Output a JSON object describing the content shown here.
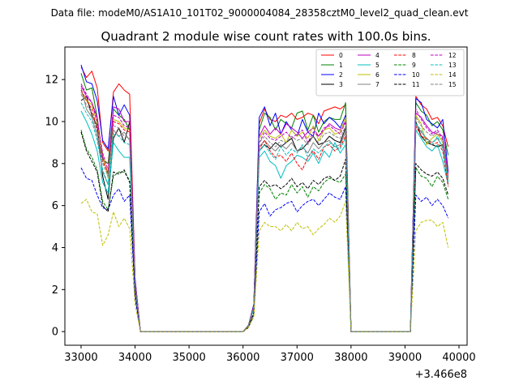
{
  "header": {
    "suptitle": "Data file: modeM0/AS1A10_101T02_9000004084_28358cztM0_level2_quad_clean.evt",
    "title": "Quadrant 2 module wise count rates with 100.0s bins."
  },
  "chart_data": {
    "type": "line",
    "title": "Quadrant 2 module wise count rates with 100.0s bins.",
    "xlabel": "",
    "ylabel": "",
    "x_offset_label": "+3.466e8",
    "xlim": [
      32700,
      40150
    ],
    "ylim": [
      -0.65,
      13.55
    ],
    "xticks": [
      33000,
      34000,
      35000,
      36000,
      37000,
      38000,
      39000,
      40000
    ],
    "yticks": [
      0,
      2,
      4,
      6,
      8,
      10,
      12
    ],
    "grid": false,
    "legend_placement": "top-right",
    "x": [
      33000,
      33100,
      33200,
      33300,
      33400,
      33500,
      33600,
      33700,
      33800,
      33900,
      34000,
      34100,
      34200,
      34300,
      34400,
      34500,
      34600,
      34700,
      34800,
      34900,
      35000,
      35100,
      35200,
      35300,
      35400,
      35500,
      35600,
      35700,
      35800,
      35900,
      36000,
      36100,
      36200,
      36300,
      36400,
      36500,
      36600,
      36700,
      36800,
      36900,
      37000,
      37100,
      37200,
      37300,
      37400,
      37500,
      37600,
      37700,
      37800,
      37900,
      38000,
      38100,
      38200,
      38300,
      38400,
      38500,
      38600,
      38700,
      38800,
      38900,
      39000,
      39100,
      39200,
      39300,
      39400,
      39500,
      39600,
      39700,
      39800
    ],
    "series": [
      {
        "name": "0",
        "color": "#ff0000",
        "dash": "solid",
        "values": [
          12.6,
          12.1,
          12.4,
          11.6,
          9.0,
          8.6,
          11.4,
          11.8,
          11.5,
          11.3,
          2.5,
          0,
          0,
          0,
          0,
          0,
          0,
          0,
          0,
          0,
          0,
          0,
          0,
          0,
          0,
          0,
          0,
          0,
          0,
          0,
          0,
          0.3,
          1.3,
          9.9,
          10.6,
          10.1,
          10.0,
          10.3,
          10.2,
          10.4,
          10.1,
          10.2,
          10.4,
          10.3,
          9.9,
          10.5,
          10.6,
          10.7,
          10.6,
          10.8,
          0,
          0,
          0,
          0,
          0,
          0,
          0,
          0,
          0,
          0,
          0,
          0,
          11.2,
          10.8,
          10.6,
          10.1,
          10.2,
          9.8,
          8.8
        ]
      },
      {
        "name": "1",
        "color": "#008000",
        "dash": "solid",
        "values": [
          12.3,
          11.5,
          11.6,
          10.2,
          8.2,
          8.0,
          10.6,
          10.3,
          10.1,
          9.6,
          2.4,
          0,
          0,
          0,
          0,
          0,
          0,
          0,
          0,
          0,
          0,
          0,
          0,
          0,
          0,
          0,
          0,
          0,
          0,
          0,
          0,
          0.3,
          1.2,
          9.6,
          10.4,
          10.2,
          9.6,
          10.1,
          9.9,
          9.7,
          10.4,
          10.5,
          9.6,
          10.3,
          9.5,
          10.0,
          10.2,
          10.1,
          10.1,
          10.9,
          0,
          0,
          0,
          0,
          0,
          0,
          0,
          0,
          0,
          0,
          0,
          0,
          10.9,
          10.5,
          10.3,
          9.8,
          10.0,
          9.6,
          8.4
        ]
      },
      {
        "name": "2",
        "color": "#0000ff",
        "dash": "solid",
        "values": [
          12.7,
          11.9,
          11.8,
          11.0,
          9.1,
          8.7,
          11.2,
          10.3,
          10.8,
          10.3,
          2.5,
          0,
          0,
          0,
          0,
          0,
          0,
          0,
          0,
          0,
          0,
          0,
          0,
          0,
          0,
          0,
          0,
          0,
          0,
          0,
          0,
          0.3,
          1.3,
          10.2,
          10.7,
          9.8,
          10.4,
          9.4,
          10.0,
          9.6,
          9.3,
          10.1,
          9.5,
          9.3,
          10.4,
          9.9,
          10.2,
          10.0,
          9.7,
          10.3,
          0,
          0,
          0,
          0,
          0,
          0,
          0,
          0,
          0,
          0,
          0,
          0,
          11.1,
          10.9,
          10.1,
          9.9,
          9.7,
          10.1,
          7.6
        ]
      },
      {
        "name": "3",
        "color": "#000000",
        "dash": "solid",
        "values": [
          11.0,
          11.2,
          10.3,
          9.8,
          7.4,
          6.3,
          9.2,
          9.7,
          9.0,
          10.0,
          2.2,
          0,
          0,
          0,
          0,
          0,
          0,
          0,
          0,
          0,
          0,
          0,
          0,
          0,
          0,
          0,
          0,
          0,
          0,
          0,
          0,
          0.3,
          1.2,
          8.6,
          8.9,
          8.7,
          9.0,
          8.8,
          9.0,
          9.2,
          8.6,
          8.7,
          9.0,
          9.3,
          8.9,
          9.0,
          9.3,
          9.1,
          9.0,
          9.7,
          0,
          0,
          0,
          0,
          0,
          0,
          0,
          0,
          0,
          0,
          0,
          0,
          10.0,
          9.3,
          9.0,
          8.9,
          8.8,
          8.9,
          7.3
        ]
      },
      {
        "name": "4",
        "color": "#bf00bf",
        "dash": "solid",
        "values": [
          11.7,
          11.2,
          10.9,
          10.2,
          8.3,
          7.5,
          10.7,
          10.6,
          10.0,
          10.0,
          2.4,
          0,
          0,
          0,
          0,
          0,
          0,
          0,
          0,
          0,
          0,
          0,
          0,
          0,
          0,
          0,
          0,
          0,
          0,
          0,
          0,
          0.3,
          1.2,
          9.3,
          9.8,
          9.4,
          9.7,
          9.4,
          9.9,
          9.7,
          9.5,
          9.2,
          9.5,
          9.7,
          9.3,
          9.6,
          9.9,
          9.7,
          9.6,
          10.0,
          0,
          0,
          0,
          0,
          0,
          0,
          0,
          0,
          0,
          0,
          0,
          0,
          10.4,
          10.2,
          9.8,
          9.5,
          9.4,
          9.3,
          7.5
        ]
      },
      {
        "name": "5",
        "color": "#00bfbf",
        "dash": "solid",
        "values": [
          10.5,
          10.0,
          9.4,
          8.6,
          7.1,
          6.6,
          9.0,
          8.6,
          8.3,
          8.3,
          2.1,
          0,
          0,
          0,
          0,
          0,
          0,
          0,
          0,
          0,
          0,
          0,
          0,
          0,
          0,
          0,
          0,
          0,
          0,
          0,
          0,
          0.3,
          1.1,
          8.3,
          8.6,
          8.1,
          7.9,
          7.3,
          7.9,
          8.1,
          8.4,
          8.3,
          8.1,
          8.5,
          8.0,
          8.6,
          8.3,
          9.0,
          8.5,
          8.9,
          0,
          0,
          0,
          0,
          0,
          0,
          0,
          0,
          0,
          0,
          0,
          0,
          9.6,
          9.2,
          8.8,
          8.6,
          8.9,
          8.1,
          7.0
        ]
      },
      {
        "name": "6",
        "color": "#bfbf00",
        "dash": "solid",
        "values": [
          11.4,
          11.0,
          10.8,
          9.9,
          8.5,
          7.3,
          10.1,
          10.0,
          9.7,
          9.6,
          2.3,
          0,
          0,
          0,
          0,
          0,
          0,
          0,
          0,
          0,
          0,
          0,
          0,
          0,
          0,
          0,
          0,
          0,
          0,
          0,
          0,
          0.3,
          1.2,
          9.2,
          9.6,
          9.3,
          9.2,
          9.4,
          9.0,
          9.6,
          9.3,
          9.5,
          9.2,
          9.8,
          9.1,
          9.6,
          9.7,
          9.4,
          9.5,
          10.2,
          0,
          0,
          0,
          0,
          0,
          0,
          0,
          0,
          0,
          0,
          0,
          0,
          10.3,
          9.9,
          8.9,
          9.2,
          9.4,
          9.0,
          7.2
        ]
      },
      {
        "name": "7",
        "color": "#808080",
        "dash": "solid",
        "values": [
          11.6,
          10.6,
          10.2,
          9.3,
          7.6,
          7.0,
          9.6,
          9.3,
          9.5,
          9.1,
          2.2,
          0,
          0,
          0,
          0,
          0,
          0,
          0,
          0,
          0,
          0,
          0,
          0,
          0,
          0,
          0,
          0,
          0,
          0,
          0,
          0,
          0.3,
          1.1,
          8.8,
          9.1,
          8.8,
          8.6,
          8.9,
          8.7,
          9.0,
          8.6,
          8.8,
          8.5,
          9.0,
          8.7,
          9.0,
          9.1,
          8.8,
          8.9,
          9.5,
          0,
          0,
          0,
          0,
          0,
          0,
          0,
          0,
          0,
          0,
          0,
          0,
          9.9,
          9.5,
          9.2,
          9.0,
          9.2,
          8.8,
          7.0
        ]
      },
      {
        "name": "8",
        "color": "#ff0000",
        "dash": "dashed",
        "values": [
          11.5,
          11.0,
          10.6,
          9.6,
          8.1,
          7.6,
          10.0,
          9.9,
          9.6,
          9.5,
          2.3,
          0,
          0,
          0,
          0,
          0,
          0,
          0,
          0,
          0,
          0,
          0,
          0,
          0,
          0,
          0,
          0,
          0,
          0,
          0,
          0,
          0.3,
          1.2,
          8.7,
          9.1,
          8.6,
          8.3,
          8.4,
          8.1,
          8.5,
          8.0,
          7.7,
          8.3,
          8.6,
          8.2,
          8.8,
          8.9,
          8.6,
          8.8,
          9.3,
          0,
          0,
          0,
          0,
          0,
          0,
          0,
          0,
          0,
          0,
          0,
          0,
          9.8,
          9.3,
          9.2,
          8.9,
          9.0,
          8.6,
          6.9
        ]
      },
      {
        "name": "9",
        "color": "#008000",
        "dash": "dashed",
        "values": [
          9.6,
          8.7,
          8.3,
          7.7,
          6.2,
          5.8,
          7.4,
          7.6,
          7.6,
          7.2,
          1.9,
          0,
          0,
          0,
          0,
          0,
          0,
          0,
          0,
          0,
          0,
          0,
          0,
          0,
          0,
          0,
          0,
          0,
          0,
          0,
          0,
          0.2,
          0.9,
          6.6,
          7.0,
          6.8,
          6.3,
          6.6,
          6.5,
          7.0,
          6.6,
          6.9,
          6.4,
          6.9,
          6.7,
          7.1,
          7.3,
          7.2,
          7.1,
          7.5,
          0,
          0,
          0,
          0,
          0,
          0,
          0,
          0,
          0,
          0,
          0,
          0,
          7.8,
          7.4,
          7.3,
          6.9,
          7.4,
          7.1,
          6.3
        ]
      },
      {
        "name": "10",
        "color": "#0000ff",
        "dash": "dashed",
        "values": [
          7.8,
          7.3,
          7.2,
          6.5,
          5.9,
          5.8,
          6.5,
          6.8,
          6.2,
          6.5,
          1.6,
          0,
          0,
          0,
          0,
          0,
          0,
          0,
          0,
          0,
          0,
          0,
          0,
          0,
          0,
          0,
          0,
          0,
          0,
          0,
          0,
          0.2,
          0.8,
          5.7,
          6.1,
          5.5,
          5.8,
          5.9,
          6.1,
          6.2,
          5.7,
          6.0,
          6.2,
          6.3,
          6.0,
          6.3,
          6.6,
          6.4,
          6.3,
          6.9,
          0,
          0,
          0,
          0,
          0,
          0,
          0,
          0,
          0,
          0,
          0,
          0,
          6.5,
          6.2,
          6.4,
          6.0,
          6.3,
          6.0,
          5.4
        ]
      },
      {
        "name": "11",
        "color": "#000000",
        "dash": "dashed",
        "values": [
          9.5,
          8.6,
          8.1,
          7.6,
          6.0,
          5.7,
          7.6,
          7.5,
          7.7,
          7.1,
          1.9,
          0,
          0,
          0,
          0,
          0,
          0,
          0,
          0,
          0,
          0,
          0,
          0,
          0,
          0,
          0,
          0,
          0,
          0,
          0,
          0,
          0.2,
          0.9,
          6.9,
          7.2,
          6.9,
          7.0,
          6.8,
          7.0,
          7.3,
          6.9,
          7.1,
          6.8,
          7.2,
          7.0,
          7.3,
          7.4,
          7.2,
          7.4,
          8.2,
          0,
          0,
          0,
          0,
          0,
          0,
          0,
          0,
          0,
          0,
          0,
          0,
          8.0,
          7.7,
          7.5,
          7.4,
          7.6,
          7.3,
          6.5
        ]
      },
      {
        "name": "12",
        "color": "#bf00bf",
        "dash": "dashed",
        "values": [
          11.8,
          11.3,
          10.9,
          10.0,
          8.5,
          7.7,
          10.3,
          10.2,
          9.8,
          9.7,
          2.4,
          0,
          0,
          0,
          0,
          0,
          0,
          0,
          0,
          0,
          0,
          0,
          0,
          0,
          0,
          0,
          0,
          0,
          0,
          0,
          0,
          0.3,
          1.2,
          9.0,
          9.5,
          9.2,
          9.1,
          9.3,
          9.5,
          9.2,
          9.4,
          9.6,
          9.0,
          9.5,
          9.3,
          9.7,
          9.8,
          9.6,
          9.4,
          10.0,
          0,
          0,
          0,
          0,
          0,
          0,
          0,
          0,
          0,
          0,
          0,
          0,
          10.6,
          10.1,
          9.7,
          9.4,
          9.6,
          9.2,
          7.4
        ]
      },
      {
        "name": "13",
        "color": "#00bfbf",
        "dash": "dashed",
        "values": [
          10.9,
          10.4,
          10.0,
          9.1,
          7.7,
          7.0,
          9.4,
          9.3,
          9.0,
          8.9,
          2.2,
          0,
          0,
          0,
          0,
          0,
          0,
          0,
          0,
          0,
          0,
          0,
          0,
          0,
          0,
          0,
          0,
          0,
          0,
          0,
          0,
          0.3,
          1.1,
          8.6,
          8.9,
          8.5,
          8.2,
          8.8,
          8.4,
          8.7,
          8.5,
          8.9,
          8.3,
          8.7,
          8.5,
          8.8,
          9.0,
          8.8,
          8.7,
          9.2,
          0,
          0,
          0,
          0,
          0,
          0,
          0,
          0,
          0,
          0,
          0,
          0,
          9.9,
          9.6,
          9.1,
          8.9,
          9.3,
          8.7,
          7.1
        ]
      },
      {
        "name": "14",
        "color": "#bfbf00",
        "dash": "dashed",
        "values": [
          6.1,
          6.3,
          5.7,
          5.6,
          4.1,
          4.6,
          5.7,
          5.0,
          5.4,
          4.9,
          1.3,
          0,
          0,
          0,
          0,
          0,
          0,
          0,
          0,
          0,
          0,
          0,
          0,
          0,
          0,
          0,
          0,
          0,
          0,
          0,
          0,
          0.2,
          0.7,
          4.8,
          5.2,
          5.0,
          5.0,
          4.8,
          5.1,
          4.8,
          5.2,
          4.9,
          5.0,
          4.6,
          4.9,
          5.1,
          5.4,
          5.2,
          5.5,
          6.2,
          0,
          0,
          0,
          0,
          0,
          0,
          0,
          0,
          0,
          0,
          0,
          0,
          4.8,
          5.2,
          5.3,
          5.3,
          5.0,
          5.2,
          4.0
        ]
      },
      {
        "name": "15",
        "color": "#808080",
        "dash": "dashed",
        "values": [
          11.3,
          10.8,
          10.4,
          9.5,
          8.0,
          7.4,
          9.8,
          9.7,
          9.3,
          9.2,
          2.3,
          0,
          0,
          0,
          0,
          0,
          0,
          0,
          0,
          0,
          0,
          0,
          0,
          0,
          0,
          0,
          0,
          0,
          0,
          0,
          0,
          0.3,
          1.2,
          9.0,
          9.3,
          9.0,
          8.8,
          9.1,
          9.0,
          9.3,
          9.1,
          9.2,
          8.9,
          9.3,
          9.0,
          9.4,
          9.5,
          9.3,
          9.2,
          9.8,
          0,
          0,
          0,
          0,
          0,
          0,
          0,
          0,
          0,
          0,
          0,
          0,
          10.2,
          9.8,
          9.5,
          9.3,
          9.5,
          9.1,
          7.3
        ]
      }
    ]
  }
}
